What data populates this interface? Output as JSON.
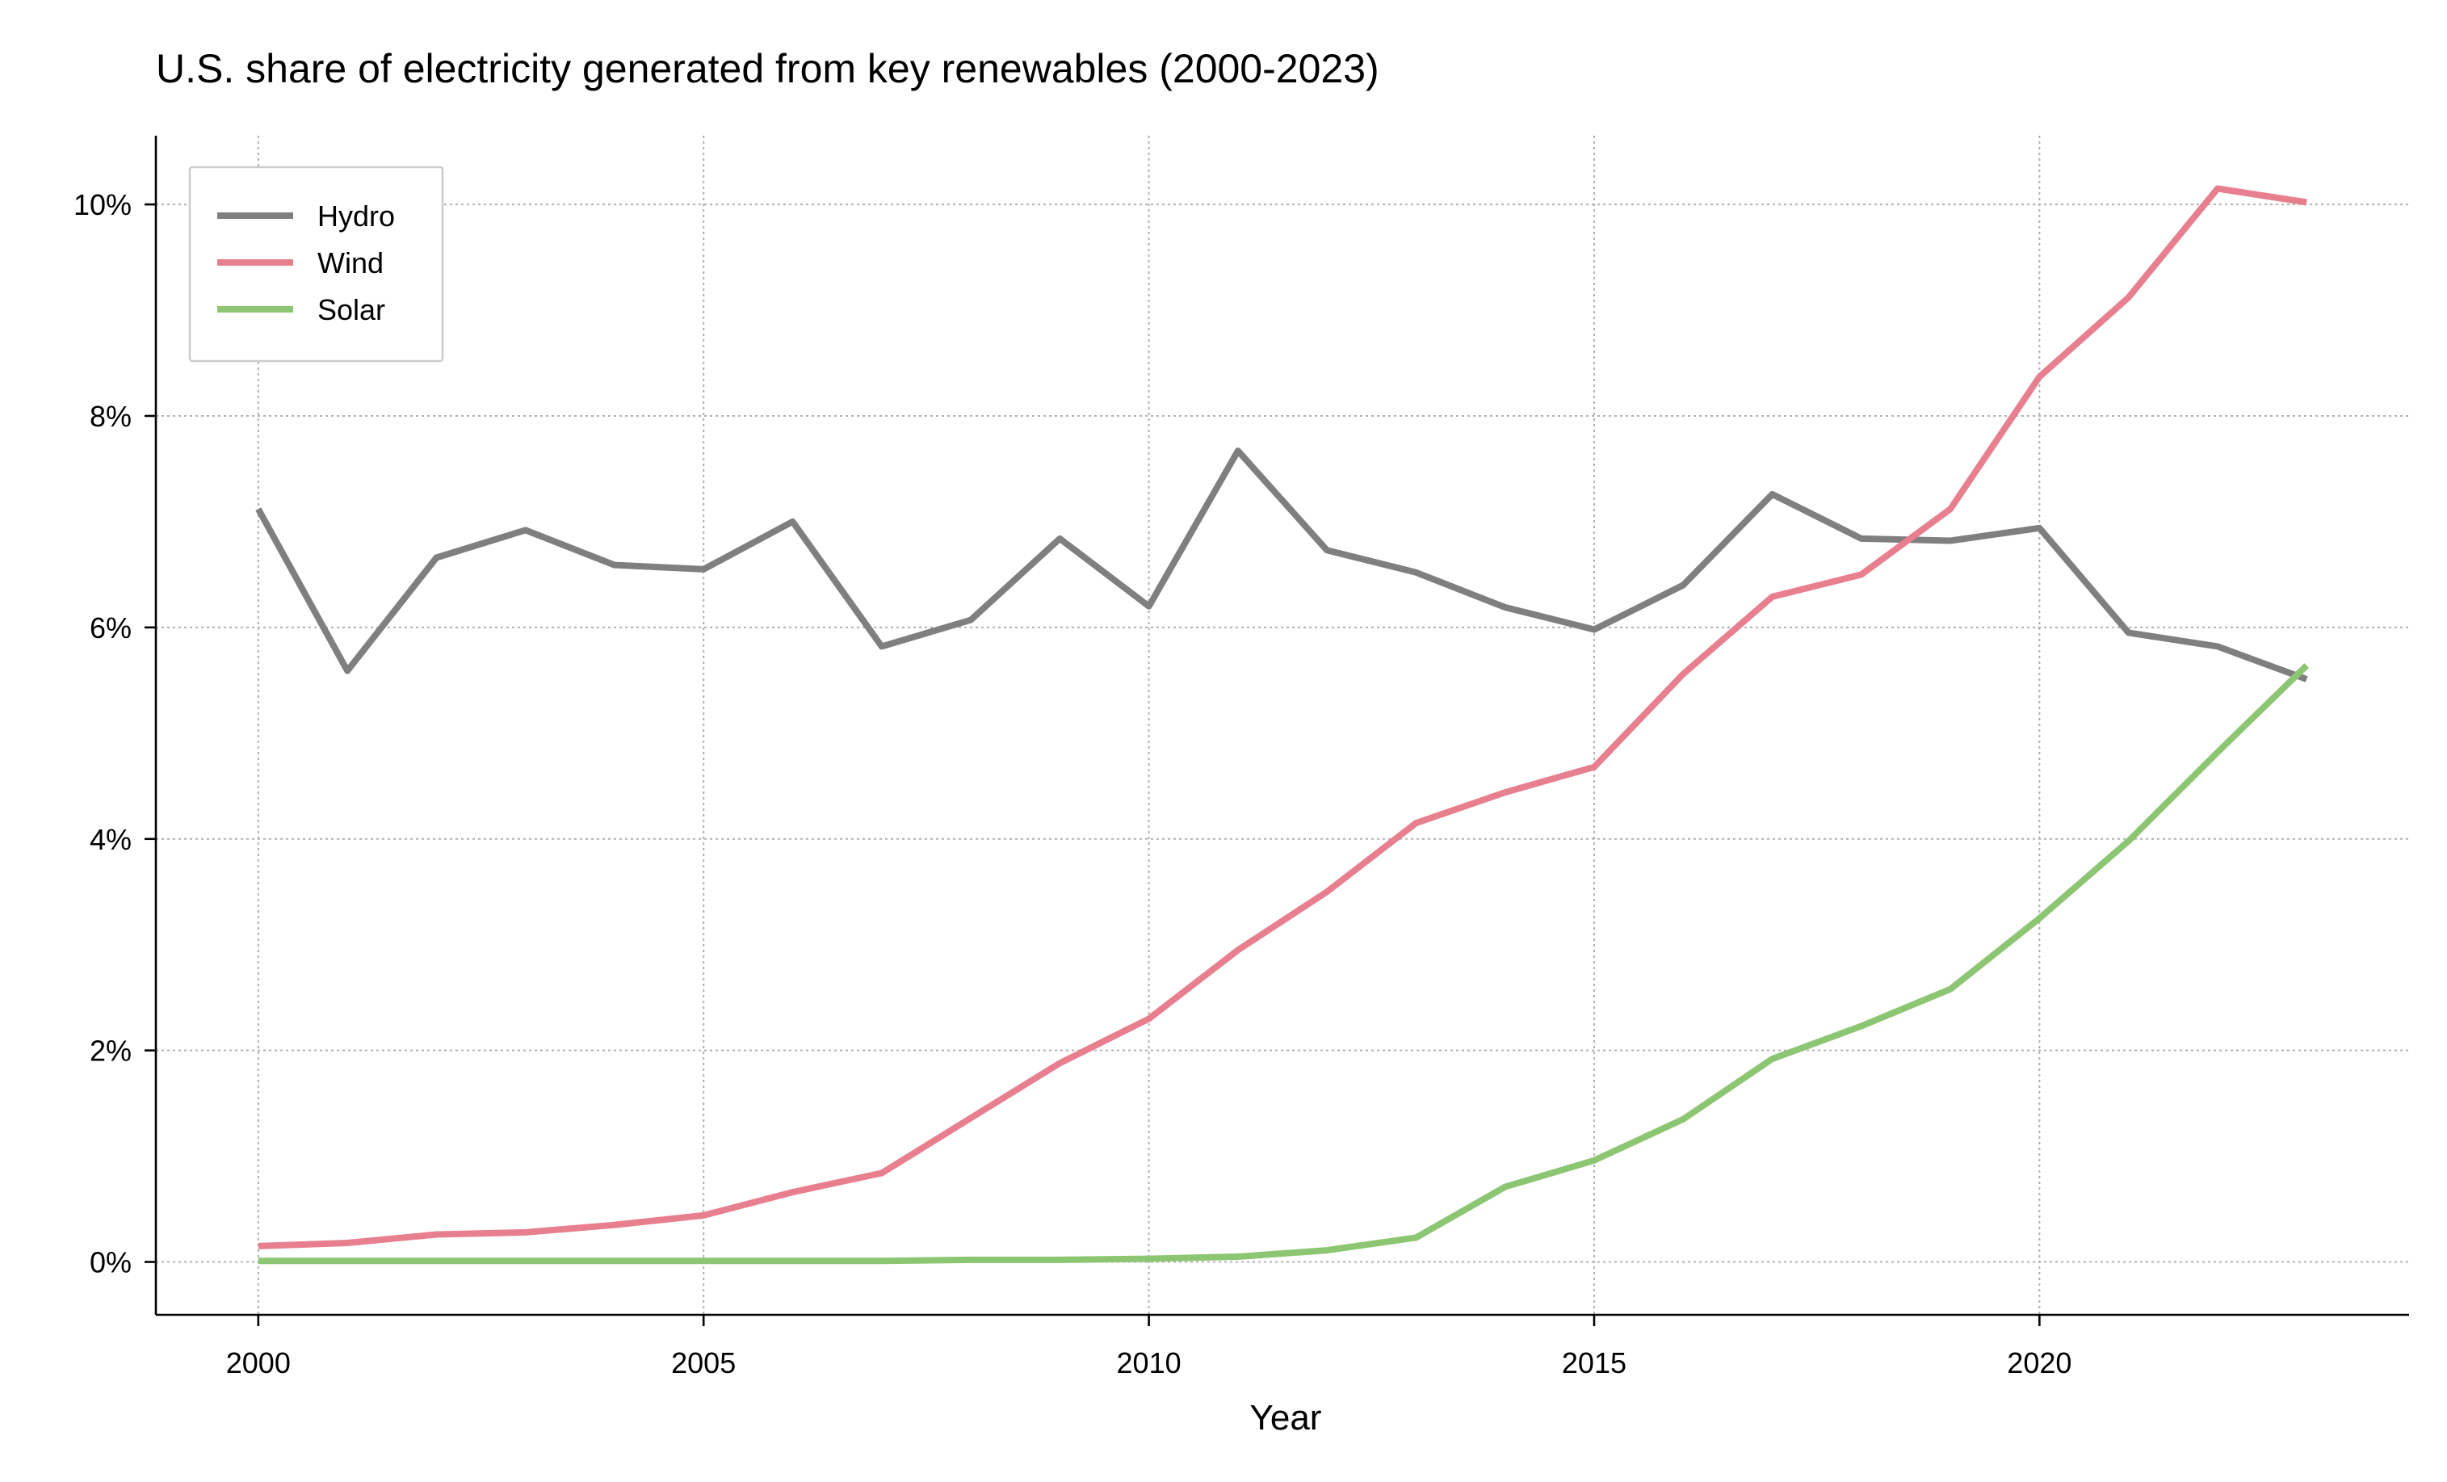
{
  "chart_data": {
    "type": "line",
    "title": "U.S. share of electricity generated from key renewables (2000-2023)",
    "xlabel": "Year",
    "ylabel": "",
    "xlim": [
      1998.85,
      2024.15
    ],
    "ylim": [
      -0.5,
      10.65
    ],
    "x_ticks": [
      2000,
      2005,
      2010,
      2015,
      2020
    ],
    "y_ticks": [
      0,
      2,
      4,
      6,
      8,
      10
    ],
    "y_tick_labels": [
      "0%",
      "2%",
      "4%",
      "6%",
      "8%",
      "10%"
    ],
    "grid": true,
    "legend_position": "top-left",
    "x": [
      2000,
      2001,
      2002,
      2003,
      2004,
      2005,
      2006,
      2007,
      2008,
      2009,
      2010,
      2011,
      2012,
      2013,
      2014,
      2015,
      2016,
      2017,
      2018,
      2019,
      2020,
      2021,
      2022,
      2023
    ],
    "series": [
      {
        "name": "Hydro",
        "color": "#7f7f7f",
        "values": [
          7.12,
          5.59,
          6.66,
          6.92,
          6.59,
          6.55,
          7.0,
          5.82,
          6.07,
          6.84,
          6.2,
          7.67,
          6.73,
          6.52,
          6.19,
          5.98,
          6.4,
          7.26,
          6.84,
          6.82,
          6.94,
          5.95,
          5.82,
          5.51
        ]
      },
      {
        "name": "Wind",
        "color": "#e87f8f",
        "values": [
          0.15,
          0.18,
          0.26,
          0.28,
          0.35,
          0.44,
          0.66,
          0.84,
          1.36,
          1.88,
          2.3,
          2.95,
          3.5,
          4.15,
          4.44,
          4.68,
          5.56,
          6.29,
          6.5,
          7.12,
          8.37,
          9.12,
          10.15,
          10.02
        ]
      },
      {
        "name": "Solar",
        "color": "#8dc673",
        "values": [
          0.01,
          0.01,
          0.01,
          0.01,
          0.01,
          0.01,
          0.01,
          0.01,
          0.02,
          0.02,
          0.03,
          0.05,
          0.11,
          0.23,
          0.71,
          0.96,
          1.35,
          1.92,
          2.23,
          2.58,
          3.25,
          3.98,
          4.82,
          5.64
        ]
      }
    ]
  }
}
